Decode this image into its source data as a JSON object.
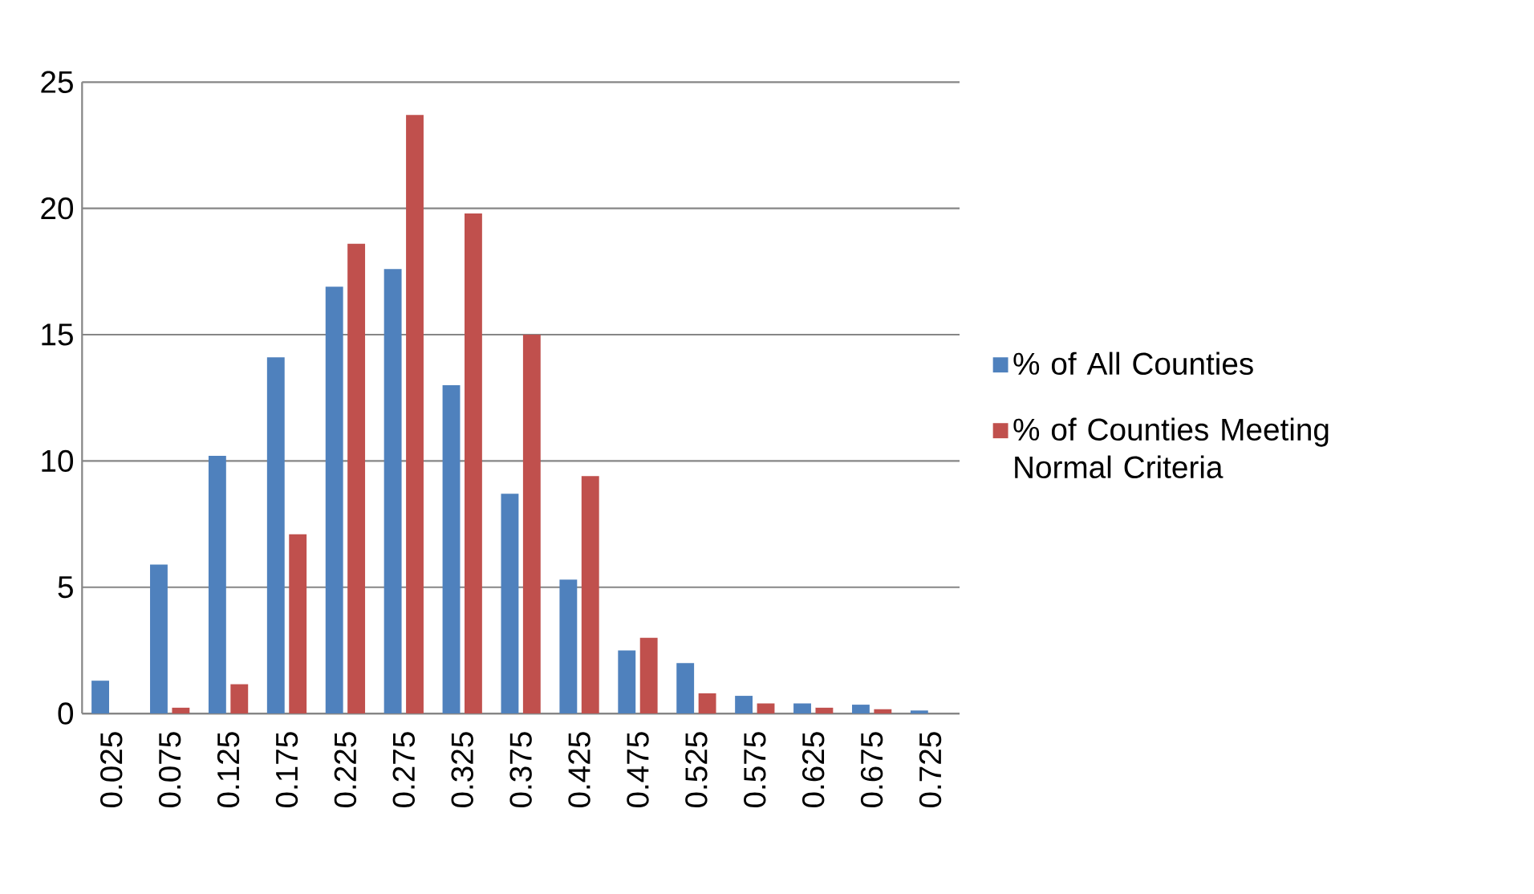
{
  "chart_data": {
    "type": "bar",
    "categories": [
      "0.025",
      "0.075",
      "0.125",
      "0.175",
      "0.225",
      "0.275",
      "0.325",
      "0.375",
      "0.425",
      "0.475",
      "0.525",
      "0.575",
      "0.625",
      "0.675",
      "0.725"
    ],
    "series": [
      {
        "name": "% of All Counties",
        "color": "#4f81bd",
        "values": [
          1.3,
          5.9,
          10.2,
          14.1,
          16.9,
          17.6,
          13.0,
          8.7,
          5.3,
          2.5,
          2.0,
          0.7,
          0.4,
          0.35,
          0.12
        ]
      },
      {
        "name": "% of Counties Meeting Normal Criteria",
        "color": "#c0504d",
        "values": [
          0,
          0.23,
          1.16,
          7.1,
          18.6,
          23.7,
          19.8,
          15.0,
          9.4,
          3.0,
          0.8,
          0.4,
          0.23,
          0.17,
          0
        ]
      }
    ],
    "ylim": [
      0,
      25
    ],
    "yticks": [
      0,
      5,
      10,
      15,
      20,
      25
    ],
    "grid": "y",
    "legend": "right"
  }
}
